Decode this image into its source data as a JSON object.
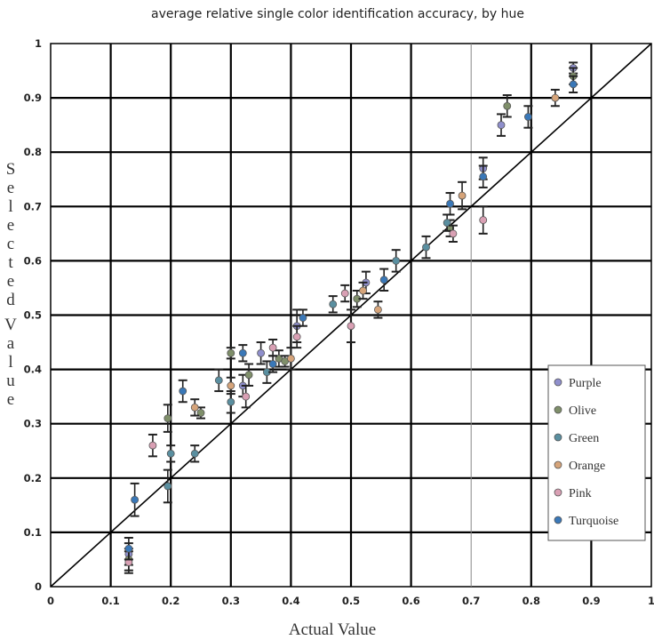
{
  "chart_data": {
    "type": "scatter",
    "title": "average relative single color identification accuracy, by hue",
    "xlabel": "Actual Value",
    "ylabel": "Selected Value",
    "xlim": [
      0,
      1
    ],
    "ylim": [
      0,
      1
    ],
    "x_ticks": [
      "0",
      "0.1",
      "0.2",
      "0.3",
      "0.4",
      "0.5",
      "0.6",
      "0.7",
      "0.8",
      "0.9",
      "1"
    ],
    "y_ticks": [
      "0",
      "0.1",
      "0.2",
      "0.3",
      "0.4",
      "0.5",
      "0.6",
      "0.7",
      "0.8",
      "0.9",
      "1"
    ],
    "grid": true,
    "legend_position": "bottom-right",
    "reference_line": [
      [
        0,
        0
      ],
      [
        1,
        1
      ]
    ],
    "series": [
      {
        "name": "Purple",
        "color": "#8f8fcc",
        "points": [
          {
            "x": 0.13,
            "y": 0.06,
            "err": 0.02
          },
          {
            "x": 0.32,
            "y": 0.37,
            "err": 0.02
          },
          {
            "x": 0.35,
            "y": 0.43,
            "err": 0.02
          },
          {
            "x": 0.41,
            "y": 0.48,
            "err": 0.03
          },
          {
            "x": 0.525,
            "y": 0.56,
            "err": 0.02
          },
          {
            "x": 0.72,
            "y": 0.77,
            "err": 0.02
          },
          {
            "x": 0.75,
            "y": 0.85,
            "err": 0.02
          },
          {
            "x": 0.87,
            "y": 0.955,
            "err": 0.01
          }
        ]
      },
      {
        "name": "Olive",
        "color": "#7f8f6a",
        "points": [
          {
            "x": 0.13,
            "y": 0.05,
            "err": 0.02
          },
          {
            "x": 0.195,
            "y": 0.31,
            "err": 0.025
          },
          {
            "x": 0.25,
            "y": 0.32,
            "err": 0.01
          },
          {
            "x": 0.3,
            "y": 0.43,
            "err": 0.01
          },
          {
            "x": 0.33,
            "y": 0.39,
            "err": 0.02
          },
          {
            "x": 0.38,
            "y": 0.42,
            "err": 0.015
          },
          {
            "x": 0.39,
            "y": 0.415,
            "err": 0.01
          },
          {
            "x": 0.51,
            "y": 0.53,
            "err": 0.015
          },
          {
            "x": 0.665,
            "y": 0.66,
            "err": 0.015
          },
          {
            "x": 0.76,
            "y": 0.885,
            "err": 0.02
          },
          {
            "x": 0.87,
            "y": 0.94,
            "err": 0.015
          }
        ]
      },
      {
        "name": "Green",
        "color": "#5a8fa0",
        "points": [
          {
            "x": 0.195,
            "y": 0.185,
            "err": 0.03
          },
          {
            "x": 0.2,
            "y": 0.245,
            "err": 0.015
          },
          {
            "x": 0.24,
            "y": 0.245,
            "err": 0.015
          },
          {
            "x": 0.28,
            "y": 0.38,
            "err": 0.02
          },
          {
            "x": 0.3,
            "y": 0.34,
            "err": 0.02
          },
          {
            "x": 0.36,
            "y": 0.395,
            "err": 0.02
          },
          {
            "x": 0.47,
            "y": 0.52,
            "err": 0.015
          },
          {
            "x": 0.575,
            "y": 0.6,
            "err": 0.02
          },
          {
            "x": 0.625,
            "y": 0.625,
            "err": 0.02
          },
          {
            "x": 0.66,
            "y": 0.67,
            "err": 0.015
          }
        ]
      },
      {
        "name": "Orange",
        "color": "#d6a47a",
        "points": [
          {
            "x": 0.24,
            "y": 0.33,
            "err": 0.015
          },
          {
            "x": 0.3,
            "y": 0.37,
            "err": 0.015
          },
          {
            "x": 0.4,
            "y": 0.42,
            "err": 0.02
          },
          {
            "x": 0.52,
            "y": 0.545,
            "err": 0.015
          },
          {
            "x": 0.545,
            "y": 0.51,
            "err": 0.015
          },
          {
            "x": 0.685,
            "y": 0.72,
            "err": 0.025
          },
          {
            "x": 0.84,
            "y": 0.9,
            "err": 0.015
          }
        ]
      },
      {
        "name": "Pink",
        "color": "#d9a0b4",
        "points": [
          {
            "x": 0.13,
            "y": 0.045,
            "err": 0.02
          },
          {
            "x": 0.17,
            "y": 0.26,
            "err": 0.02
          },
          {
            "x": 0.325,
            "y": 0.35,
            "err": 0.02
          },
          {
            "x": 0.37,
            "y": 0.44,
            "err": 0.015
          },
          {
            "x": 0.41,
            "y": 0.46,
            "err": 0.02
          },
          {
            "x": 0.49,
            "y": 0.54,
            "err": 0.015
          },
          {
            "x": 0.5,
            "y": 0.48,
            "err": 0.03
          },
          {
            "x": 0.67,
            "y": 0.65,
            "err": 0.015
          },
          {
            "x": 0.72,
            "y": 0.675,
            "err": 0.025
          }
        ]
      },
      {
        "name": "Turquoise",
        "color": "#3a78b8",
        "points": [
          {
            "x": 0.13,
            "y": 0.07,
            "err": 0.02
          },
          {
            "x": 0.14,
            "y": 0.16,
            "err": 0.03
          },
          {
            "x": 0.22,
            "y": 0.36,
            "err": 0.02
          },
          {
            "x": 0.32,
            "y": 0.43,
            "err": 0.015
          },
          {
            "x": 0.37,
            "y": 0.41,
            "err": 0.015
          },
          {
            "x": 0.42,
            "y": 0.495,
            "err": 0.015
          },
          {
            "x": 0.555,
            "y": 0.565,
            "err": 0.02
          },
          {
            "x": 0.665,
            "y": 0.705,
            "err": 0.02
          },
          {
            "x": 0.72,
            "y": 0.755,
            "err": 0.02
          },
          {
            "x": 0.795,
            "y": 0.865,
            "err": 0.02
          },
          {
            "x": 0.87,
            "y": 0.925,
            "err": 0.015
          }
        ]
      }
    ]
  }
}
